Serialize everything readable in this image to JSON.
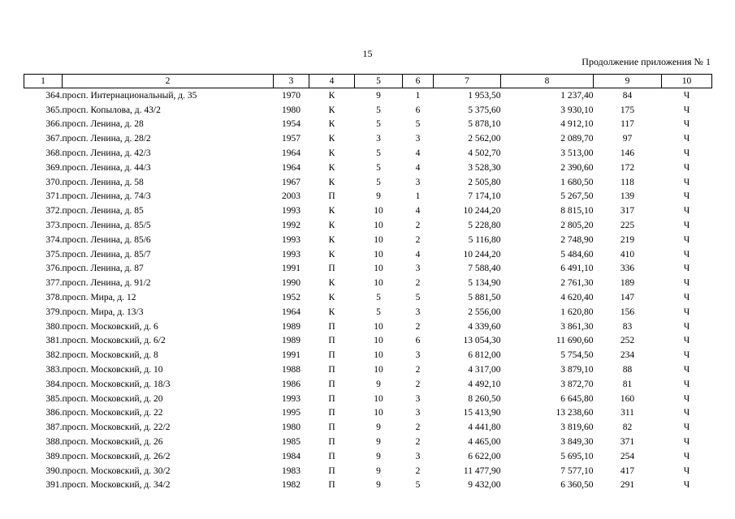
{
  "page": {
    "number": "15",
    "continuation": "Продолжение приложения № 1"
  },
  "table": {
    "headers": [
      "1",
      "2",
      "3",
      "4",
      "5",
      "6",
      "7",
      "8",
      "9",
      "10"
    ],
    "rows": [
      [
        "364.",
        "просп. Интернациональный, д. 35",
        "1970",
        "К",
        "9",
        "1",
        "1 953,50",
        "1 237,40",
        "84",
        "Ч"
      ],
      [
        "365.",
        "просп. Копылова, д. 43/2",
        "1980",
        "К",
        "5",
        "6",
        "5 375,60",
        "3 930,10",
        "175",
        "Ч"
      ],
      [
        "366.",
        "просп. Ленина, д. 28",
        "1954",
        "К",
        "5",
        "5",
        "5 878,10",
        "4 912,10",
        "117",
        "Ч"
      ],
      [
        "367.",
        "просп. Ленина, д. 28/2",
        "1957",
        "К",
        "3",
        "3",
        "2 562,00",
        "2 089,70",
        "97",
        "Ч"
      ],
      [
        "368.",
        "просп. Ленина, д. 42/3",
        "1964",
        "К",
        "5",
        "4",
        "4 502,70",
        "3 513,00",
        "146",
        "Ч"
      ],
      [
        "369.",
        "просп. Ленина, д. 44/3",
        "1964",
        "К",
        "5",
        "4",
        "3 528,30",
        "2 390,60",
        "172",
        "Ч"
      ],
      [
        "370.",
        "просп. Ленина, д. 58",
        "1967",
        "К",
        "5",
        "3",
        "2 505,80",
        "1 680,50",
        "118",
        "Ч"
      ],
      [
        "371.",
        "просп. Ленина, д. 74/3",
        "2003",
        "П",
        "9",
        "1",
        "7 174,10",
        "5 267,50",
        "139",
        "Ч"
      ],
      [
        "372.",
        "просп. Ленина, д. 85",
        "1993",
        "К",
        "10",
        "4",
        "10 244,20",
        "8 815,10",
        "317",
        "Ч"
      ],
      [
        "373.",
        "просп. Ленина, д. 85/5",
        "1992",
        "К",
        "10",
        "2",
        "5 228,80",
        "2 805,20",
        "225",
        "Ч"
      ],
      [
        "374.",
        "просп. Ленина, д. 85/6",
        "1993",
        "К",
        "10",
        "2",
        "5 116,80",
        "2 748,90",
        "219",
        "Ч"
      ],
      [
        "375.",
        "просп. Ленина, д. 85/7",
        "1993",
        "К",
        "10",
        "4",
        "10 244,20",
        "5 484,60",
        "410",
        "Ч"
      ],
      [
        "376.",
        "просп. Ленина, д. 87",
        "1991",
        "П",
        "10",
        "3",
        "7 588,40",
        "6 491,10",
        "336",
        "Ч"
      ],
      [
        "377.",
        "просп. Ленина, д. 91/2",
        "1990",
        "К",
        "10",
        "2",
        "5 134,90",
        "2 761,30",
        "189",
        "Ч"
      ],
      [
        "378.",
        "просп. Мира, д. 12",
        "1952",
        "К",
        "5",
        "5",
        "5 881,50",
        "4 620,40",
        "147",
        "Ч"
      ],
      [
        "379.",
        "просп. Мира, д. 13/3",
        "1964",
        "К",
        "5",
        "3",
        "2 556,00",
        "1 620,80",
        "156",
        "Ч"
      ],
      [
        "380.",
        "просп. Московский, д. 6",
        "1989",
        "П",
        "10",
        "2",
        "4 339,60",
        "3 861,30",
        "83",
        "Ч"
      ],
      [
        "381.",
        "просп. Московский, д. 6/2",
        "1989",
        "П",
        "10",
        "6",
        "13 054,30",
        "11 690,60",
        "252",
        "Ч"
      ],
      [
        "382.",
        "просп. Московский, д. 8",
        "1991",
        "П",
        "10",
        "3",
        "6 812,00",
        "5 754,50",
        "234",
        "Ч"
      ],
      [
        "383.",
        "просп. Московский, д. 10",
        "1988",
        "П",
        "10",
        "2",
        "4 317,00",
        "3 879,10",
        "88",
        "Ч"
      ],
      [
        "384.",
        "просп. Московский, д. 18/3",
        "1986",
        "П",
        "9",
        "2",
        "4 492,10",
        "3 872,70",
        "81",
        "Ч"
      ],
      [
        "385.",
        "просп. Московский, д. 20",
        "1993",
        "П",
        "10",
        "3",
        "8 260,50",
        "6 645,80",
        "160",
        "Ч"
      ],
      [
        "386.",
        "просп. Московский, д. 22",
        "1995",
        "П",
        "10",
        "3",
        "15 413,90",
        "13 238,60",
        "311",
        "Ч"
      ],
      [
        "387.",
        "просп. Московский, д. 22/2",
        "1980",
        "П",
        "9",
        "2",
        "4 441,80",
        "3 819,60",
        "82",
        "Ч"
      ],
      [
        "388.",
        "просп. Московский, д. 26",
        "1985",
        "П",
        "9",
        "2",
        "4 465,00",
        "3 849,30",
        "371",
        "Ч"
      ],
      [
        "389.",
        "просп. Московский, д. 26/2",
        "1984",
        "П",
        "9",
        "3",
        "6 622,00",
        "5 695,10",
        "254",
        "Ч"
      ],
      [
        "390.",
        "просп. Московский, д. 30/2",
        "1983",
        "П",
        "9",
        "2",
        "11 477,90",
        "7 577,10",
        "417",
        "Ч"
      ],
      [
        "391.",
        "просп. Московский, д. 34/2",
        "1982",
        "П",
        "9",
        "5",
        "9 432,00",
        "6 360,50",
        "291",
        "Ч"
      ]
    ]
  }
}
